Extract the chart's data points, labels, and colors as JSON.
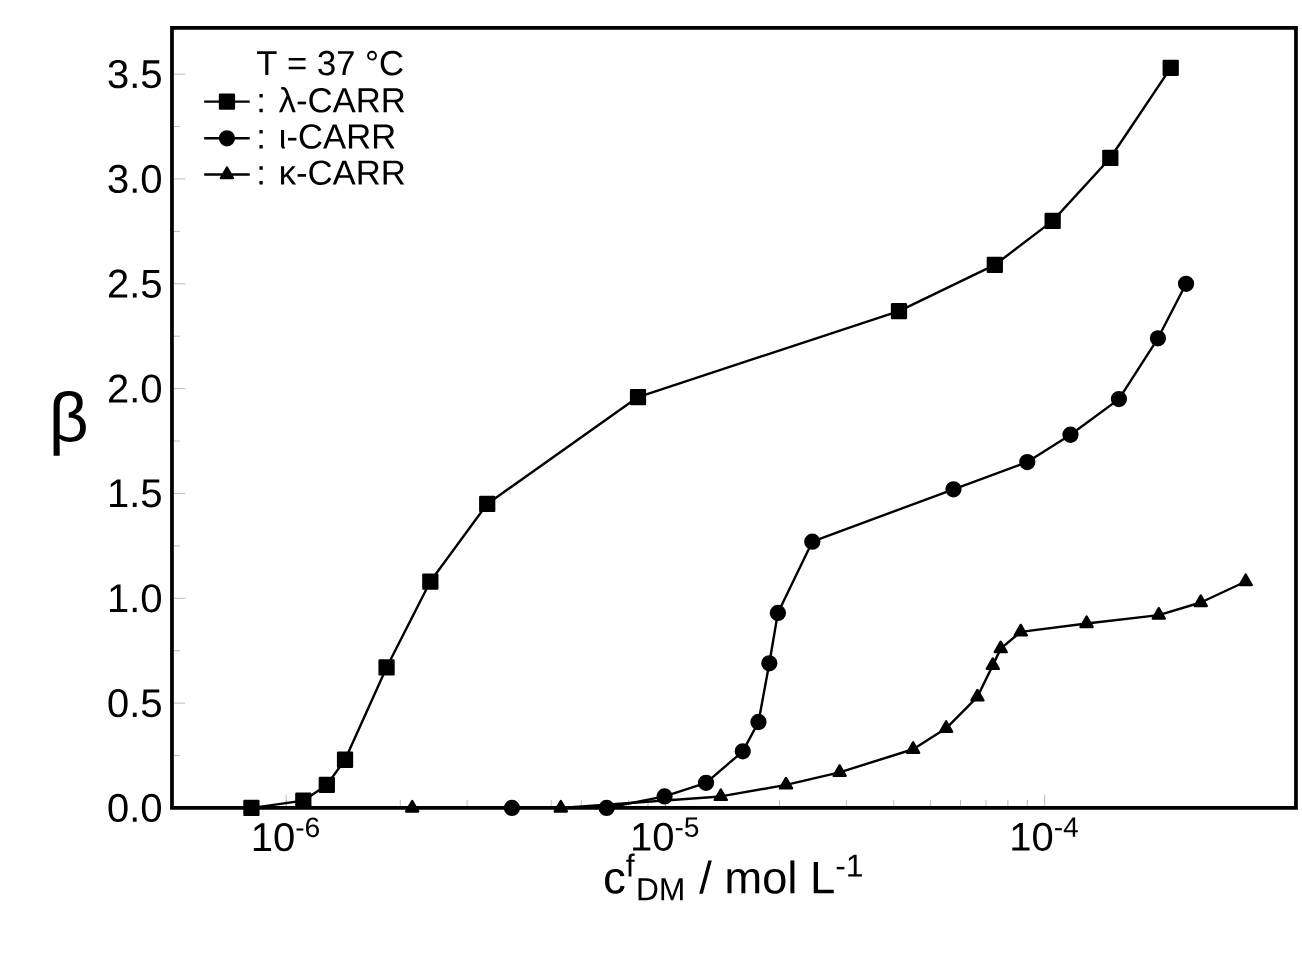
{
  "chart_data": {
    "type": "line",
    "xlabel": "c$^{f}$$_{DM}$ / mol L$^{-1}$",
    "ylabel": "β",
    "legend_title": "T = 37 °C",
    "legend": "top left",
    "log": "x",
    "xlim": [
      5e-07,
      0.00046
    ],
    "ylim": [
      0,
      3.72
    ],
    "xticks": [
      {
        "value": 1e-06,
        "label": "10$^{-6}$"
      },
      {
        "value": 1e-05,
        "label": "10$^{-5}$"
      },
      {
        "value": 0.0001,
        "label": "10$^{-4}$"
      }
    ],
    "yticks": [
      {
        "value": 0,
        "label": "0.0"
      },
      {
        "value": 0.5,
        "label": "0.5"
      },
      {
        "value": 1,
        "label": "1.0"
      },
      {
        "value": 1.5,
        "label": "1.5"
      },
      {
        "value": 2,
        "label": "2.0"
      },
      {
        "value": 2.5,
        "label": "2.5"
      },
      {
        "value": 3,
        "label": "3.0"
      },
      {
        "value": 3.5,
        "label": "3.5"
      }
    ],
    "series": [
      {
        "name": ": λ-CARR",
        "color": "#000000",
        "marker": "square",
        "x": [
          8.1e-07,
          1.11e-06,
          1.28e-06,
          1.43e-06,
          1.84e-06,
          2.4e-06,
          3.39e-06,
          8.47e-06,
          4.13e-05,
          7.39e-05,
          0.000105,
          0.000149,
          0.000215
        ],
        "values": [
          0,
          0.035,
          0.11,
          0.23,
          0.67,
          1.08,
          1.45,
          1.96,
          2.37,
          2.59,
          2.8,
          3.1,
          3.53
        ]
      },
      {
        "name": ": ι-CARR",
        "color": "#000000",
        "marker": "circle",
        "x": [
          3.94e-06,
          7e-06,
          9.95e-06,
          1.28e-05,
          1.6e-05,
          1.76e-05,
          1.88e-05,
          1.98e-05,
          2.44e-05,
          5.75e-05,
          9e-05,
          0.000117,
          0.000157,
          0.000199,
          0.000236
        ],
        "values": [
          0,
          0,
          0.055,
          0.12,
          0.27,
          0.41,
          0.69,
          0.93,
          1.27,
          1.52,
          1.65,
          1.78,
          1.95,
          2.24,
          2.5
        ]
      },
      {
        "name": ": κ-CARR",
        "color": "#000000",
        "marker": "triangle",
        "x": [
          2.15e-06,
          5.3e-06,
          1.4e-05,
          2.08e-05,
          2.88e-05,
          4.5e-05,
          5.5e-05,
          6.65e-05,
          7.3e-05,
          7.66e-05,
          8.65e-05,
          0.000129,
          0.0002,
          0.000258,
          0.000339
        ],
        "values": [
          0,
          0,
          0.055,
          0.11,
          0.17,
          0.28,
          0.38,
          0.53,
          0.68,
          0.76,
          0.84,
          0.88,
          0.92,
          0.98,
          1.08
        ]
      }
    ]
  }
}
